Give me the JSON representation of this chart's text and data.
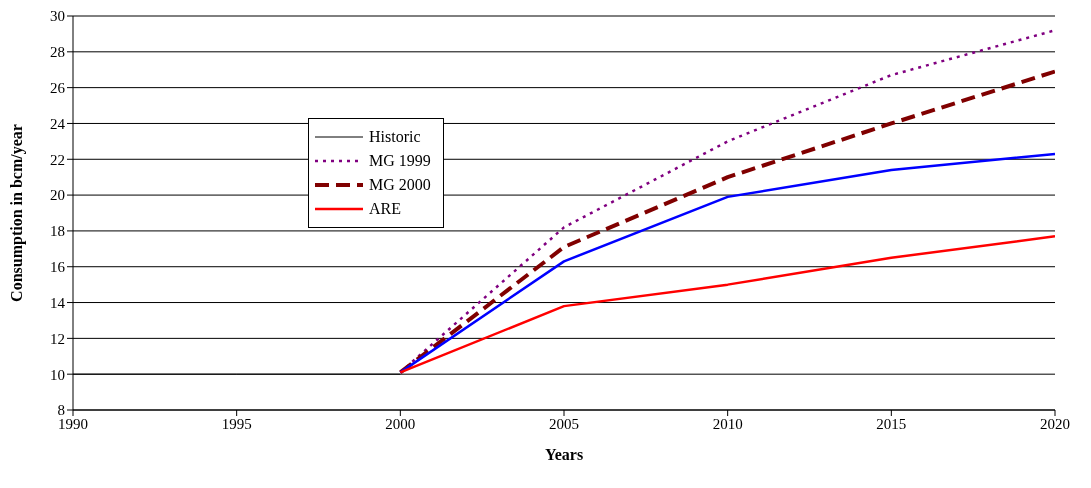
{
  "chart_data": {
    "type": "line",
    "xlabel": "Years",
    "ylabel": "Consumption in bcm/year",
    "xlim": [
      1990,
      2020
    ],
    "xticks": [
      1990,
      1995,
      2000,
      2005,
      2010,
      2015,
      2020
    ],
    "ylim": [
      8,
      30
    ],
    "yticks": [
      8,
      10,
      12,
      14,
      16,
      18,
      20,
      22,
      24,
      26,
      28,
      30
    ],
    "grid": "y",
    "legend": "left",
    "marker": "none",
    "series": [
      {
        "name": "Historic",
        "color": "#000000",
        "line_style": "solid",
        "x": [
          1990,
          1995,
          2000
        ],
        "values": [
          10,
          10,
          10
        ]
      },
      {
        "name": "MG 1999",
        "color": "#800080",
        "line_style": "dotted",
        "x": [
          2000,
          2005,
          2010,
          2015,
          2020
        ],
        "values": [
          10.1,
          18.2,
          23,
          26.7,
          29.2
        ]
      },
      {
        "name": "MG 2000",
        "color": "#800000",
        "line_style": "dashed",
        "x": [
          2000,
          2005,
          2010,
          2015,
          2020
        ],
        "values": [
          10.1,
          17.1,
          21,
          24,
          26.9
        ]
      },
      {
        "color": "#0000ff",
        "line_style": "solid",
        "x": [
          2000,
          2005,
          2010,
          2015,
          2020
        ],
        "values": [
          10.1,
          16.3,
          19.9,
          21.4,
          22.3
        ]
      },
      {
        "name": "ARE",
        "color": "#ff0000",
        "line_style": "solid",
        "x": [
          2000,
          2005,
          2010,
          2015,
          2020
        ],
        "values": [
          10.1,
          13.8,
          15,
          16.5,
          17.7
        ]
      }
    ]
  }
}
